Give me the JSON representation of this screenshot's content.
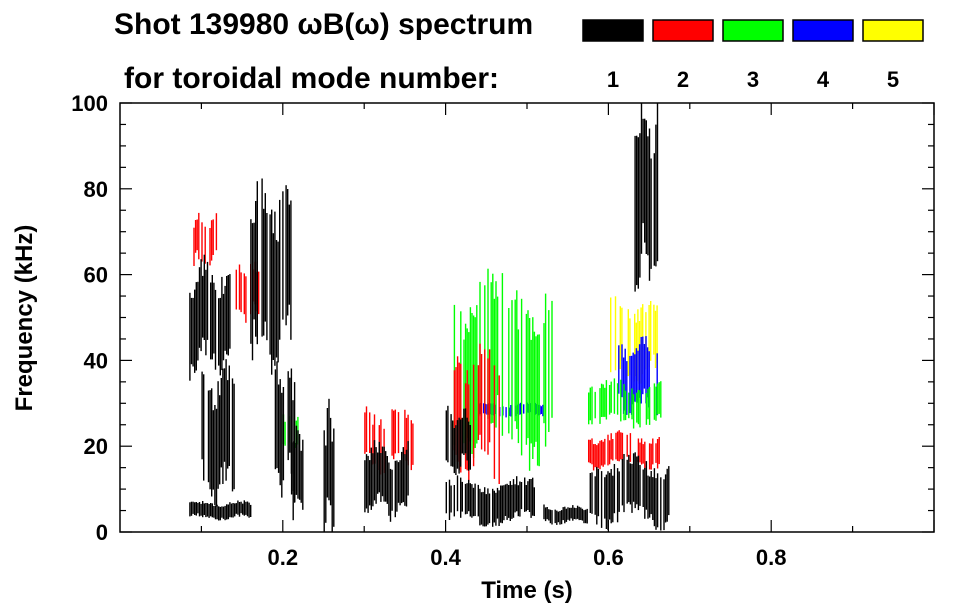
{
  "chart_data": {
    "type": "heatmap",
    "title_line1": "Shot 139980 ωB(ω) spectrum",
    "title_line2": "for toroidal mode number:",
    "xlabel": "Time (s)",
    "ylabel": "Frequency (kHz)",
    "xlim": [
      0.0,
      1.0
    ],
    "ylim": [
      0,
      100
    ],
    "x_ticks": [
      {
        "value": 0.2,
        "label": "0.2"
      },
      {
        "value": 0.4,
        "label": "0.4"
      },
      {
        "value": 0.6,
        "label": "0.6"
      },
      {
        "value": 0.8,
        "label": "0.8"
      }
    ],
    "y_ticks": [
      {
        "value": 0,
        "label": "0"
      },
      {
        "value": 20,
        "label": "20"
      },
      {
        "value": 40,
        "label": "40"
      },
      {
        "value": 60,
        "label": "60"
      },
      {
        "value": 80,
        "label": "80"
      },
      {
        "value": 100,
        "label": "100"
      }
    ],
    "legend": [
      {
        "mode": "1",
        "color": "#000000"
      },
      {
        "mode": "2",
        "color": "#ff0000"
      },
      {
        "mode": "3",
        "color": "#00ff00"
      },
      {
        "mode": "4",
        "color": "#0000ff"
      },
      {
        "mode": "5",
        "color": "#ffff00"
      }
    ],
    "features": [
      {
        "mode": "1",
        "t0": 0.085,
        "t1": 0.135,
        "f0": 38,
        "f1": 62
      },
      {
        "mode": "1",
        "t0": 0.16,
        "t1": 0.21,
        "f0": 40,
        "f1": 80
      },
      {
        "mode": "1",
        "t0": 0.085,
        "t1": 0.16,
        "f0": 3,
        "f1": 7
      },
      {
        "mode": "1",
        "t0": 0.1,
        "t1": 0.14,
        "f0": 8,
        "f1": 38
      },
      {
        "mode": "1",
        "t0": 0.19,
        "t1": 0.215,
        "f0": 10,
        "f1": 40
      },
      {
        "mode": "1",
        "t0": 0.21,
        "t1": 0.225,
        "f0": 5,
        "f1": 25
      },
      {
        "mode": "1",
        "t0": 0.25,
        "t1": 0.265,
        "f0": 2,
        "f1": 28
      },
      {
        "mode": "1",
        "t0": 0.3,
        "t1": 0.355,
        "f0": 4,
        "f1": 20
      },
      {
        "mode": "1",
        "t0": 0.4,
        "t1": 0.51,
        "f0": 2,
        "f1": 12
      },
      {
        "mode": "1",
        "t0": 0.4,
        "t1": 0.43,
        "f0": 14,
        "f1": 28
      },
      {
        "mode": "1",
        "t0": 0.52,
        "t1": 0.575,
        "f0": 2,
        "f1": 6
      },
      {
        "mode": "1",
        "t0": 0.575,
        "t1": 0.675,
        "f0": 2,
        "f1": 17
      },
      {
        "mode": "1",
        "t0": 0.632,
        "t1": 0.66,
        "f0": 60,
        "f1": 100
      },
      {
        "mode": "2",
        "t0": 0.09,
        "t1": 0.12,
        "f0": 62,
        "f1": 74
      },
      {
        "mode": "2",
        "t0": 0.14,
        "t1": 0.17,
        "f0": 50,
        "f1": 62
      },
      {
        "mode": "2",
        "t0": 0.3,
        "t1": 0.36,
        "f0": 15,
        "f1": 28
      },
      {
        "mode": "2",
        "t0": 0.41,
        "t1": 0.47,
        "f0": 14,
        "f1": 42
      },
      {
        "mode": "2",
        "t0": 0.575,
        "t1": 0.665,
        "f0": 15,
        "f1": 23
      },
      {
        "mode": "3",
        "t0": 0.2,
        "t1": 0.22,
        "f0": 20,
        "f1": 28
      },
      {
        "mode": "3",
        "t0": 0.41,
        "t1": 0.53,
        "f0": 18,
        "f1": 58
      },
      {
        "mode": "3",
        "t0": 0.575,
        "t1": 0.665,
        "f0": 25,
        "f1": 35
      },
      {
        "mode": "4",
        "t0": 0.44,
        "t1": 0.52,
        "f0": 27,
        "f1": 30
      },
      {
        "mode": "4",
        "t0": 0.61,
        "t1": 0.66,
        "f0": 28,
        "f1": 44
      },
      {
        "mode": "5",
        "t0": 0.6,
        "t1": 0.66,
        "f0": 35,
        "f1": 54
      }
    ]
  }
}
